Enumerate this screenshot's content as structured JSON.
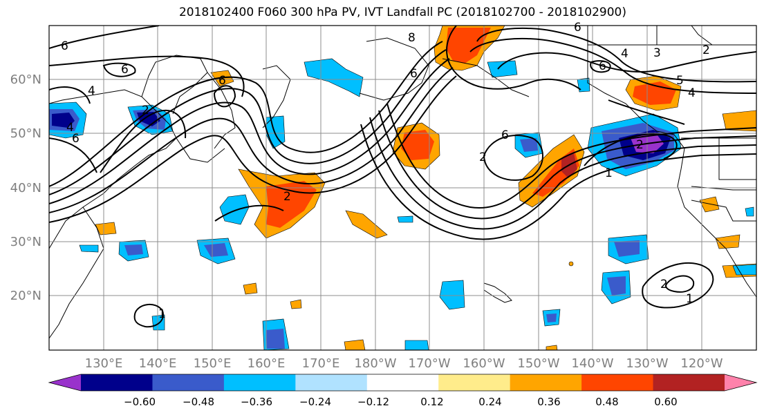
{
  "title": "2018102400 F060 300 hPa PV, IVT Landfall PC (2018102700 - 2018102900)",
  "map": {
    "lat_labels": [
      "60°N",
      "50°N",
      "40°N",
      "30°N",
      "20°N"
    ],
    "lon_labels": [
      "130°E",
      "140°E",
      "150°E",
      "160°E",
      "170°E",
      "180°W",
      "170°W",
      "160°W",
      "150°W",
      "140°W",
      "130°W",
      "120°W"
    ],
    "contour_labels": [
      "6",
      "6",
      "4",
      "6",
      "4",
      "6",
      "2",
      "2",
      "8",
      "6",
      "4",
      "3",
      "2",
      "6",
      "5",
      "4",
      "6",
      "2",
      "1",
      "2",
      "1",
      "1",
      "2",
      "6"
    ]
  },
  "colorbar": {
    "ticks": [
      "−0.60",
      "−0.48",
      "−0.36",
      "−0.24",
      "−0.12",
      "0.12",
      "0.24",
      "0.36",
      "0.48",
      "0.60"
    ],
    "colors": [
      "#9932CC",
      "#00008B",
      "#3A5BCB",
      "#00BFFF",
      "#B0E2FF",
      "#FFFFFF",
      "#FFEC8B",
      "#FFA500",
      "#FF4500",
      "#B22222",
      "#FF82AB"
    ]
  }
}
